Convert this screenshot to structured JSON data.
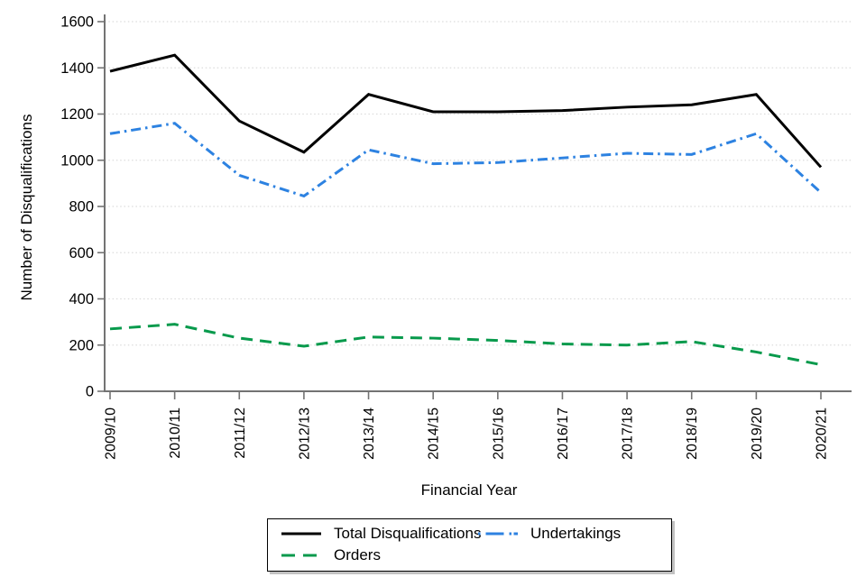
{
  "chart_data": {
    "type": "line",
    "title": "",
    "xlabel": "Financial Year",
    "ylabel": "Number of Disqualifications",
    "categories": [
      "2009/10",
      "2010/11",
      "2011/12",
      "2012/13",
      "2013/14",
      "2014/15",
      "2015/16",
      "2016/17",
      "2017/18",
      "2018/19",
      "2019/20",
      "2020/21"
    ],
    "series": [
      {
        "name": "Total Disqualifications",
        "color": "#000000",
        "style": "solid",
        "values": [
          1385,
          1455,
          1170,
          1035,
          1285,
          1210,
          1210,
          1215,
          1230,
          1240,
          1285,
          970
        ]
      },
      {
        "name": "Undertakings",
        "color": "#2D82E1",
        "style": "dashdot",
        "values": [
          1115,
          1160,
          935,
          845,
          1045,
          985,
          990,
          1010,
          1030,
          1025,
          1115,
          860
        ]
      },
      {
        "name": "Orders",
        "color": "#089A4C",
        "style": "dashed",
        "values": [
          270,
          290,
          230,
          195,
          235,
          230,
          220,
          205,
          200,
          215,
          170,
          115
        ]
      }
    ],
    "ylim": [
      0,
      1600
    ],
    "yticks": [
      0,
      200,
      400,
      600,
      800,
      1000,
      1200,
      1400,
      1600
    ],
    "grid": "horizontal-dotted",
    "legend_position": "bottom",
    "axis_color": "#737373",
    "gridline_color": "#dcdcdc"
  }
}
